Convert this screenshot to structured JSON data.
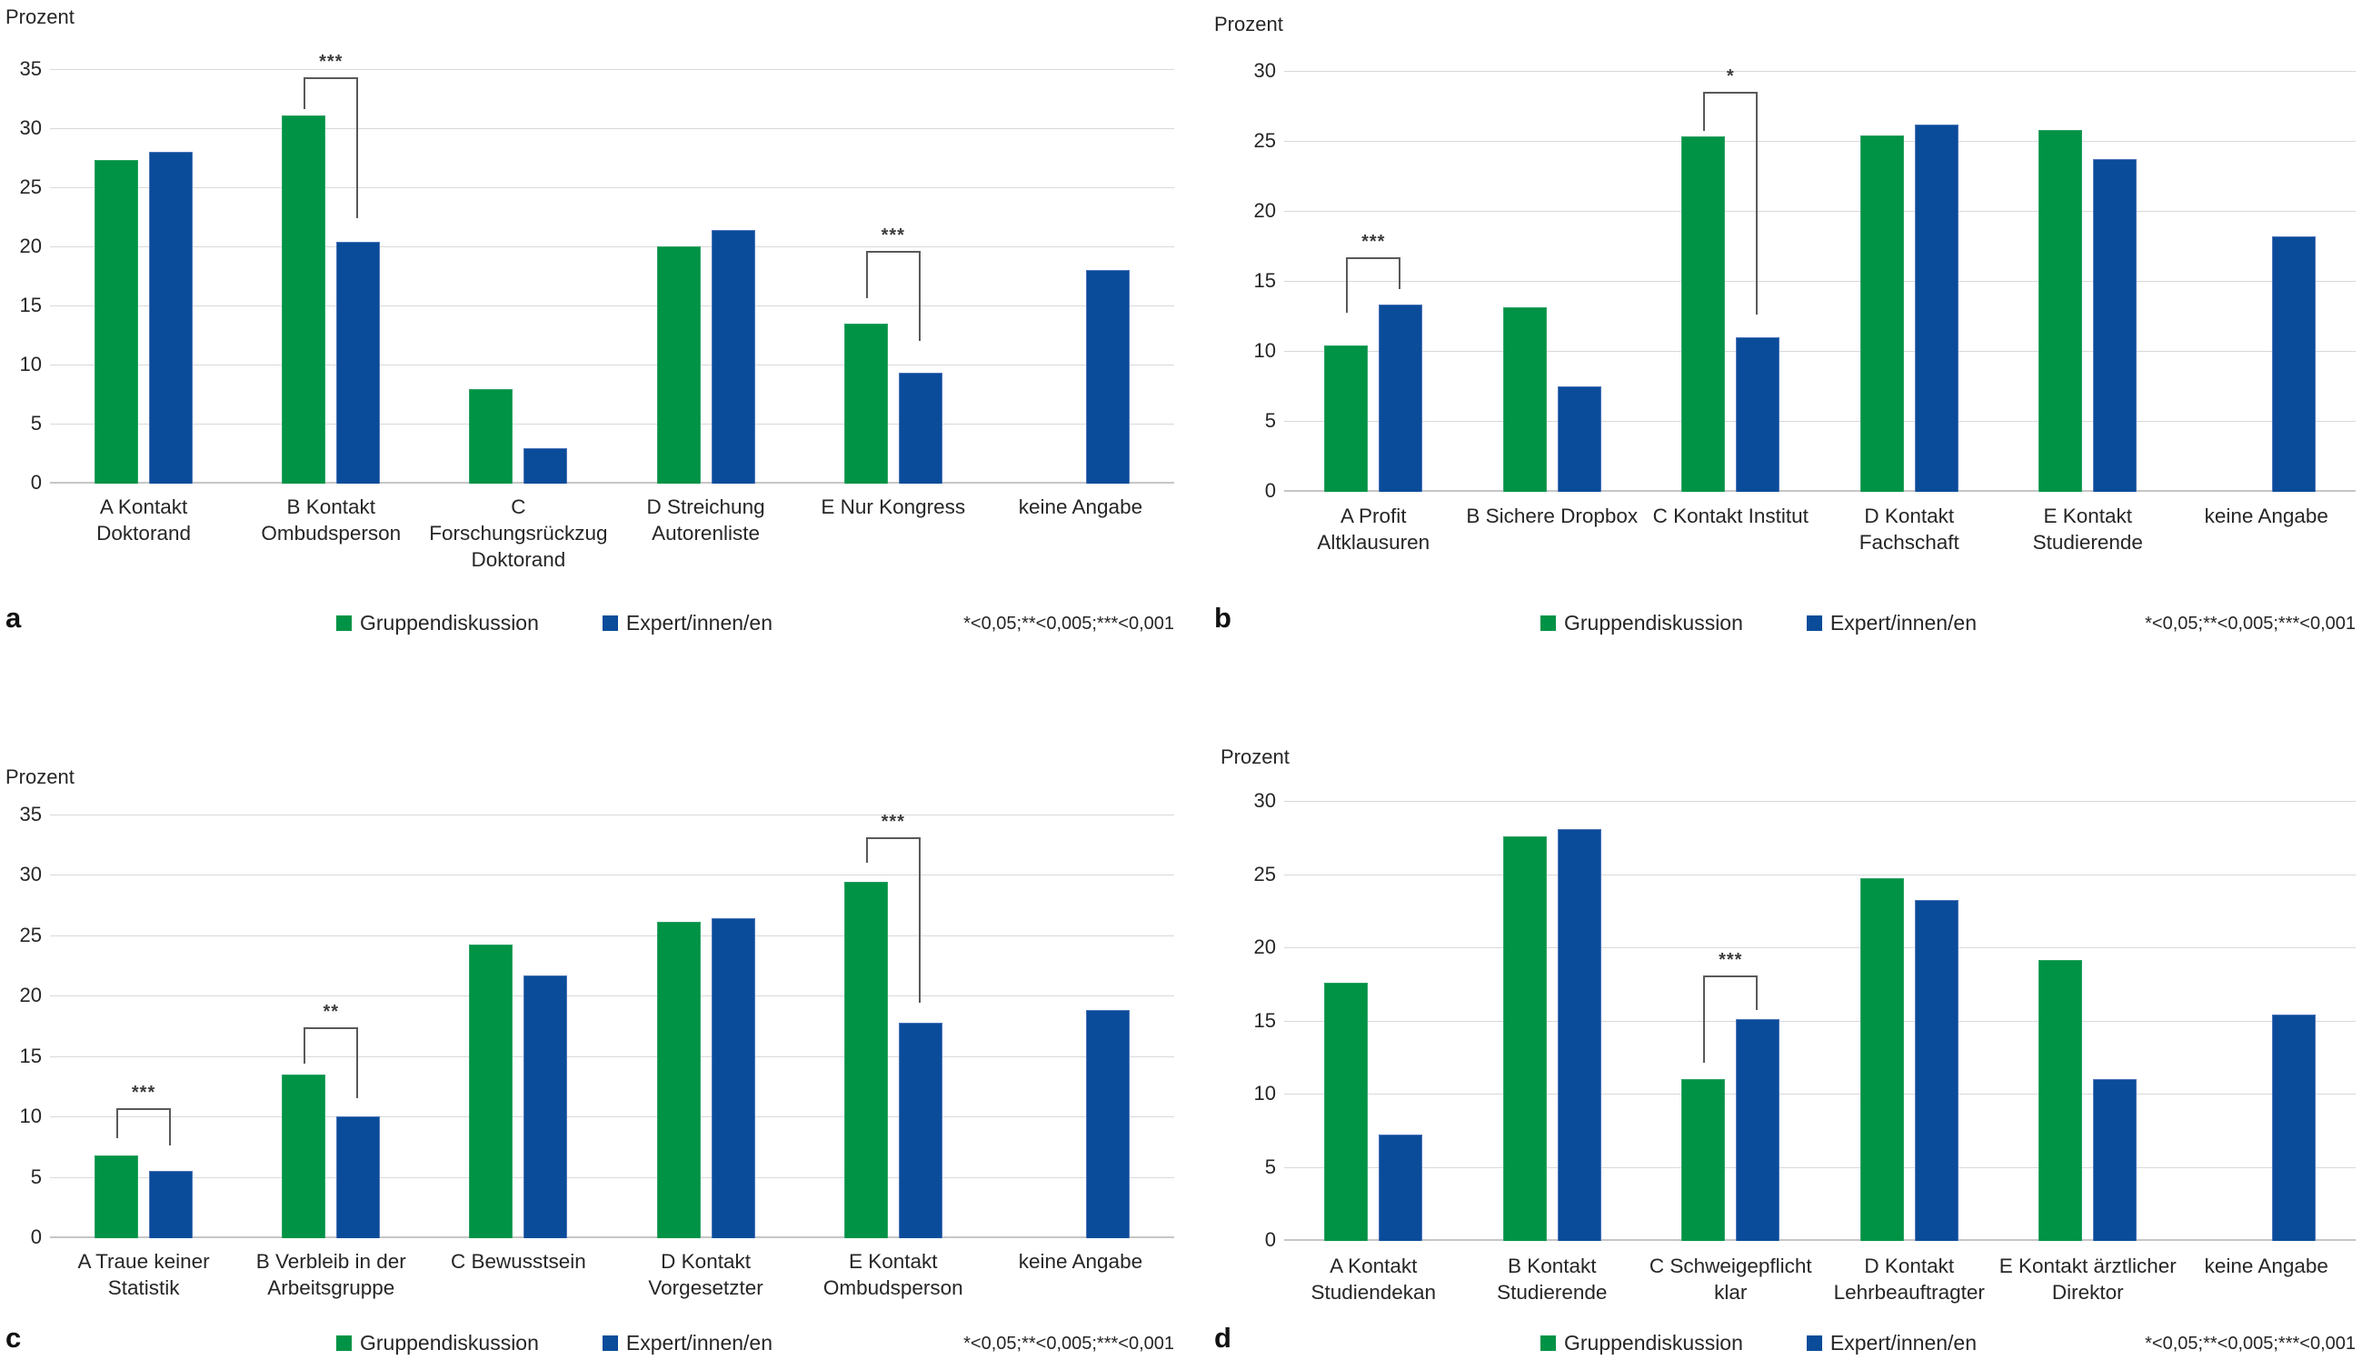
{
  "figure": {
    "background": "#ffffff",
    "footnote": "*<0,05;**<0,005;***<0,001",
    "legend": [
      {
        "name": "Gruppendiskussion",
        "color": "#009345"
      },
      {
        "name": "Expert/innen/en",
        "color": "#0a4c9a"
      }
    ]
  },
  "chart_data": [
    {
      "type": "bar",
      "panel_label": "a",
      "ylabel": "Prozent",
      "ylim": [
        0,
        35
      ],
      "ytick_step": 5,
      "grid": true,
      "legend_position": "bottom",
      "categories": [
        "A Kontakt Doktorand",
        "B Kontakt Ombudsperson",
        "C Forschungsrückzug Doktorand",
        "D Streichung Autorenliste",
        "E  Nur Kongress",
        "keine Angabe"
      ],
      "category_lines": [
        [
          "A Kontakt",
          "Doktorand"
        ],
        [
          "B Kontakt",
          "Ombudsperson"
        ],
        [
          "C",
          "Forschungsrückzug",
          "Doktorand"
        ],
        [
          "D Streichung",
          "Autorenliste"
        ],
        [
          "E  Nur Kongress"
        ],
        [
          "keine Angabe"
        ]
      ],
      "series": [
        {
          "name": "Gruppendiskussion",
          "color": "#009345",
          "values": [
            27.3,
            31.1,
            7.9,
            20.0,
            13.5,
            null
          ]
        },
        {
          "name": "Expert/innen/en",
          "color": "#0a4c9a",
          "values": [
            28.0,
            20.4,
            2.9,
            21.4,
            9.3,
            18.0
          ]
        }
      ],
      "significance": [
        {
          "category": 1,
          "stars": "***",
          "top": 34.3,
          "left_end": 31.6,
          "right_end": 22.4
        },
        {
          "category": 4,
          "stars": "***",
          "top": 19.6,
          "left_end": 15.6,
          "right_end": 12.0
        }
      ],
      "footnote": "*<0,05;**<0,005;***<0,001"
    },
    {
      "type": "bar",
      "panel_label": "b",
      "ylabel": "Prozent",
      "ylim": [
        0,
        30
      ],
      "ytick_step": 5,
      "grid": true,
      "legend_position": "bottom",
      "categories": [
        "A Profit Altklausuren",
        "B Sichere Dropbox",
        "C Kontakt Institut",
        "D Kontakt Fachschaft",
        "E  Kontakt Studierende",
        "keine Angabe"
      ],
      "category_lines": [
        [
          "A Profit",
          "Altklausuren"
        ],
        [
          "B Sichere Dropbox"
        ],
        [
          "C Kontakt Institut"
        ],
        [
          "D Kontakt",
          "Fachschaft"
        ],
        [
          "E  Kontakt",
          "Studierende"
        ],
        [
          "keine Angabe"
        ]
      ],
      "series": [
        {
          "name": "Gruppendiskussion",
          "color": "#009345",
          "values": [
            10.4,
            13.1,
            25.3,
            25.4,
            25.8,
            null
          ]
        },
        {
          "name": "Expert/innen/en",
          "color": "#0a4c9a",
          "values": [
            13.3,
            7.5,
            11.0,
            26.2,
            23.7,
            18.2
          ]
        }
      ],
      "significance": [
        {
          "category": 0,
          "stars": "***",
          "top": 16.7,
          "left_end": 12.7,
          "right_end": 14.4
        },
        {
          "category": 2,
          "stars": "*",
          "top": 28.5,
          "left_end": 25.7,
          "right_end": 12.6
        }
      ],
      "footnote": "*<0,05;**<0,005;***<0,001"
    },
    {
      "type": "bar",
      "panel_label": "c",
      "ylabel": "Prozent",
      "ylim": [
        0,
        35
      ],
      "ytick_step": 5,
      "grid": true,
      "legend_position": "bottom",
      "categories": [
        "A Traue keiner Statistik",
        "B Verbleib in der Arbeitsgruppe",
        "C Bewusstsein",
        "D Kontakt Vorgesetzter",
        "E  Kontakt Ombudsperson",
        "keine Angabe"
      ],
      "category_lines": [
        [
          "A Traue keiner",
          "Statistik"
        ],
        [
          "B Verbleib in der",
          "Arbeitsgruppe"
        ],
        [
          "C Bewusstsein"
        ],
        [
          "D Kontakt",
          "Vorgesetzter"
        ],
        [
          "E  Kontakt",
          "Ombudsperson"
        ],
        [
          "keine Angabe"
        ]
      ],
      "series": [
        {
          "name": "Gruppendiskussion",
          "color": "#009345",
          "values": [
            6.8,
            13.5,
            24.2,
            26.1,
            29.4,
            null
          ]
        },
        {
          "name": "Expert/innen/en",
          "color": "#0a4c9a",
          "values": [
            5.5,
            10.0,
            21.7,
            26.4,
            17.8,
            18.8
          ]
        }
      ],
      "significance": [
        {
          "category": 0,
          "stars": "***",
          "top": 10.7,
          "left_end": 8.2,
          "right_end": 7.6
        },
        {
          "category": 1,
          "stars": "**",
          "top": 17.4,
          "left_end": 14.4,
          "right_end": 11.5
        },
        {
          "category": 4,
          "stars": "***",
          "top": 33.1,
          "left_end": 31.0,
          "right_end": 19.4
        }
      ],
      "footnote": "*<0,05;**<0,005;***<0,001"
    },
    {
      "type": "bar",
      "panel_label": "d",
      "ylabel": "Prozent",
      "ylim": [
        0,
        30
      ],
      "ytick_step": 5,
      "grid": true,
      "legend_position": "bottom",
      "categories": [
        "A Kontakt Studiendekan",
        "B Kontakt Studierende",
        "C Schweigepflicht klar",
        "D Kontakt Lehrbeauftragter",
        "E  Kontakt ärztlicher Direktor",
        "keine Angabe"
      ],
      "category_lines": [
        [
          "A Kontakt",
          "Studiendekan"
        ],
        [
          "B Kontakt",
          "Studierende"
        ],
        [
          "C Schweigepflicht",
          "klar"
        ],
        [
          "D Kontakt",
          "Lehrbeauftragter"
        ],
        [
          "E  Kontakt ärztlicher",
          "Direktor"
        ],
        [
          "keine Angabe"
        ]
      ],
      "series": [
        {
          "name": "Gruppendiskussion",
          "color": "#009345",
          "values": [
            17.6,
            27.6,
            11.0,
            24.7,
            19.1,
            null
          ]
        },
        {
          "name": "Expert/innen/en",
          "color": "#0a4c9a",
          "values": [
            7.2,
            28.1,
            15.1,
            23.2,
            11.0,
            15.4
          ]
        }
      ],
      "significance": [
        {
          "category": 2,
          "stars": "***",
          "top": 18.1,
          "left_end": 12.1,
          "right_end": 15.7
        }
      ],
      "footnote": "*<0,05;**<0,005;***<0,001"
    }
  ]
}
